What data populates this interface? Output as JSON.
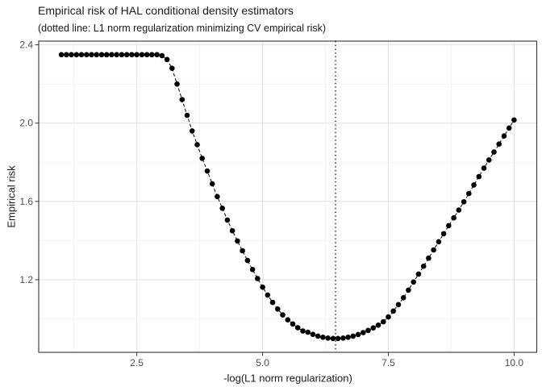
{
  "chart_data": {
    "type": "scatter",
    "title": "Empirical risk of HAL conditional density estimators",
    "subtitle": "(dotted line: L1 norm regularization minimizing CV empirical risk)",
    "xlabel": "-log(L1 norm regularization)",
    "ylabel": "Empirical risk",
    "xlim": [
      0.55,
      10.45
    ],
    "ylim": [
      0.829,
      2.419
    ],
    "grid": true,
    "legend": "none",
    "x_ticks": {
      "values": [
        2.5,
        5.0,
        7.5,
        10.0
      ],
      "labels": [
        "2.5",
        "5.0",
        "7.5",
        "10.0"
      ]
    },
    "y_ticks": {
      "values": [
        2.4,
        2.0,
        1.6,
        1.2
      ],
      "labels": [
        "2.4",
        "2.0",
        "1.6",
        "1.2"
      ]
    },
    "x_minor": [
      1.25,
      3.75,
      6.25,
      8.75
    ],
    "y_minor": [
      1.0,
      1.4,
      1.8,
      2.2
    ],
    "vline_x": 6.45,
    "line_style": "dashed",
    "vline_style": "dotted",
    "point_radius": 3.3,
    "series": [
      {
        "name": "empirical-risk",
        "x": [
          1.0,
          1.1,
          1.2,
          1.3,
          1.4,
          1.5,
          1.6,
          1.7,
          1.8,
          1.9,
          2.0,
          2.1,
          2.2,
          2.3,
          2.4,
          2.5,
          2.6,
          2.7,
          2.8,
          2.9,
          3.0,
          3.1,
          3.2,
          3.3,
          3.4,
          3.5,
          3.6,
          3.7,
          3.8,
          3.9,
          4.0,
          4.1,
          4.2,
          4.3,
          4.4,
          4.5,
          4.6,
          4.7,
          4.8,
          4.9,
          5.0,
          5.1,
          5.2,
          5.3,
          5.4,
          5.5,
          5.6,
          5.7,
          5.8,
          5.9,
          6.0,
          6.1,
          6.2,
          6.3,
          6.4,
          6.5,
          6.6,
          6.7,
          6.8,
          6.9,
          7.0,
          7.1,
          7.2,
          7.3,
          7.4,
          7.5,
          7.6,
          7.7,
          7.8,
          7.9,
          8.0,
          8.1,
          8.2,
          8.3,
          8.4,
          8.5,
          8.6,
          8.7,
          8.8,
          8.9,
          9.0,
          9.1,
          9.2,
          9.3,
          9.4,
          9.5,
          9.6,
          9.7,
          9.8,
          9.9,
          10.0
        ],
        "y": [
          2.35,
          2.35,
          2.35,
          2.35,
          2.35,
          2.35,
          2.35,
          2.35,
          2.35,
          2.35,
          2.35,
          2.35,
          2.35,
          2.35,
          2.35,
          2.35,
          2.35,
          2.35,
          2.35,
          2.35,
          2.345,
          2.325,
          2.28,
          2.2,
          2.12,
          2.04,
          1.96,
          1.89,
          1.82,
          1.755,
          1.69,
          1.625,
          1.565,
          1.505,
          1.45,
          1.398,
          1.348,
          1.298,
          1.252,
          1.206,
          1.162,
          1.122,
          1.084,
          1.05,
          1.02,
          0.995,
          0.974,
          0.955,
          0.938,
          0.932,
          0.921,
          0.912,
          0.906,
          0.902,
          0.9,
          0.9,
          0.902,
          0.906,
          0.912,
          0.92,
          0.93,
          0.941,
          0.954,
          0.968,
          0.985,
          1.01,
          1.04,
          1.073,
          1.108,
          1.147,
          1.188,
          1.229,
          1.269,
          1.31,
          1.352,
          1.394,
          1.435,
          1.476,
          1.516,
          1.556,
          1.598,
          1.64,
          1.684,
          1.727,
          1.77,
          1.812,
          1.852,
          1.893,
          1.934,
          1.975,
          2.016
        ]
      }
    ],
    "colors": {
      "point": "#000000",
      "line": "#000000",
      "vline": "#000000",
      "grid_major": "#e3e3e3",
      "grid_minor": "#f0f0f0",
      "panel_border": "#333333",
      "tick": "#333333",
      "tick_label": "#4d4d4d",
      "text": "#1a1a1a",
      "panel_background": "#ffffff"
    }
  }
}
